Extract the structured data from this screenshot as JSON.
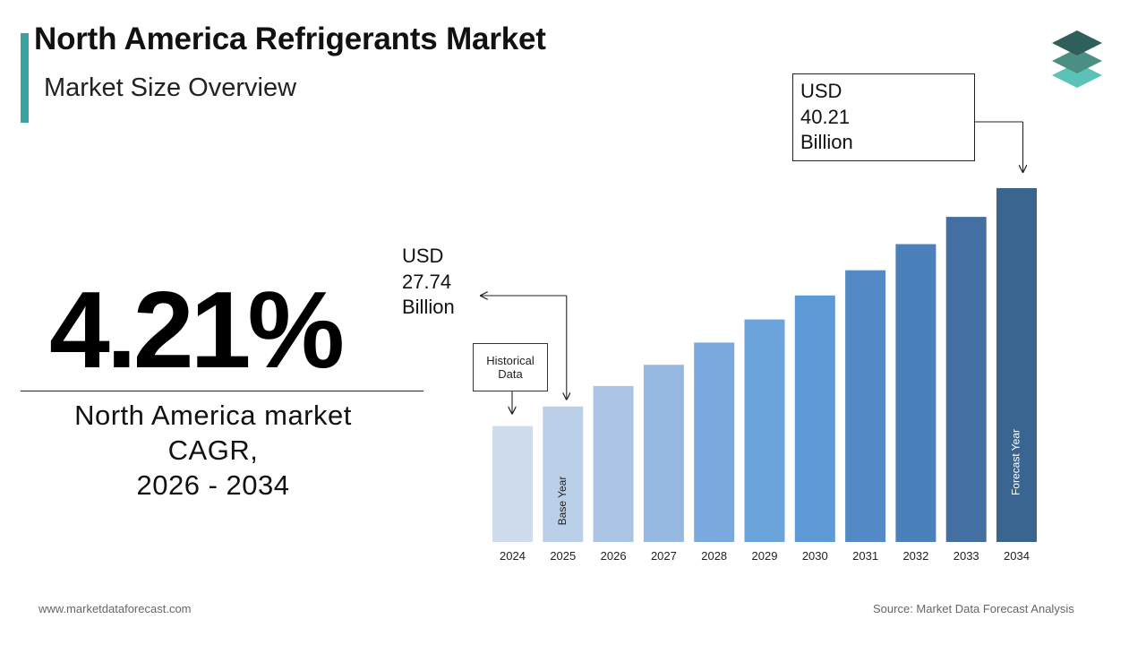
{
  "header": {
    "title": "North America Refrigerants Market",
    "subtitle": "Market Size Overview"
  },
  "cagr": {
    "value": "4.21%",
    "label_lines": [
      "North America market",
      "CAGR,",
      "2026 - 2034"
    ]
  },
  "callouts": {
    "base": [
      "USD",
      "27.74",
      "Billion"
    ],
    "forecast": [
      "USD",
      "40.21",
      "Billion"
    ],
    "historical": [
      "Historical",
      "Data"
    ],
    "base_year_label": "Base Year",
    "forecast_year_label": "Forecast Year"
  },
  "footer": {
    "website": "www.marketdataforecast.com",
    "source": "Source: Market Data Forecast Analysis"
  },
  "colors": {
    "accent": "#3aa39f",
    "logo_top": "#2f5f5a",
    "logo_mid": "#4b8f84",
    "logo_bottom": "#5bc2b7",
    "bars": [
      "#cfdcee",
      "#bccfe9",
      "#abc4e4",
      "#97b9e1",
      "#79a9df",
      "#6ba3db",
      "#5e9bd6",
      "#538ac5",
      "#4b80ba",
      "#436fa3",
      "#3b6591"
    ]
  },
  "chart_data": {
    "type": "bar",
    "title": "",
    "xlabel": "",
    "ylabel": "",
    "unit": "USD Billion",
    "categories": [
      "2024",
      "2025",
      "2026",
      "2027",
      "2028",
      "2029",
      "2030",
      "2031",
      "2032",
      "2033",
      "2034"
    ],
    "values": [
      26.62,
      27.74,
      28.91,
      30.12,
      31.39,
      32.71,
      34.08,
      35.52,
      37.01,
      38.57,
      40.21
    ],
    "ylim": [
      20.0,
      40.21
    ],
    "grid": false,
    "legend": "none",
    "annotations": [
      {
        "category": "2025",
        "text": "USD 27.74 Billion"
      },
      {
        "category": "2034",
        "text": "USD 40.21 Billion"
      }
    ]
  }
}
